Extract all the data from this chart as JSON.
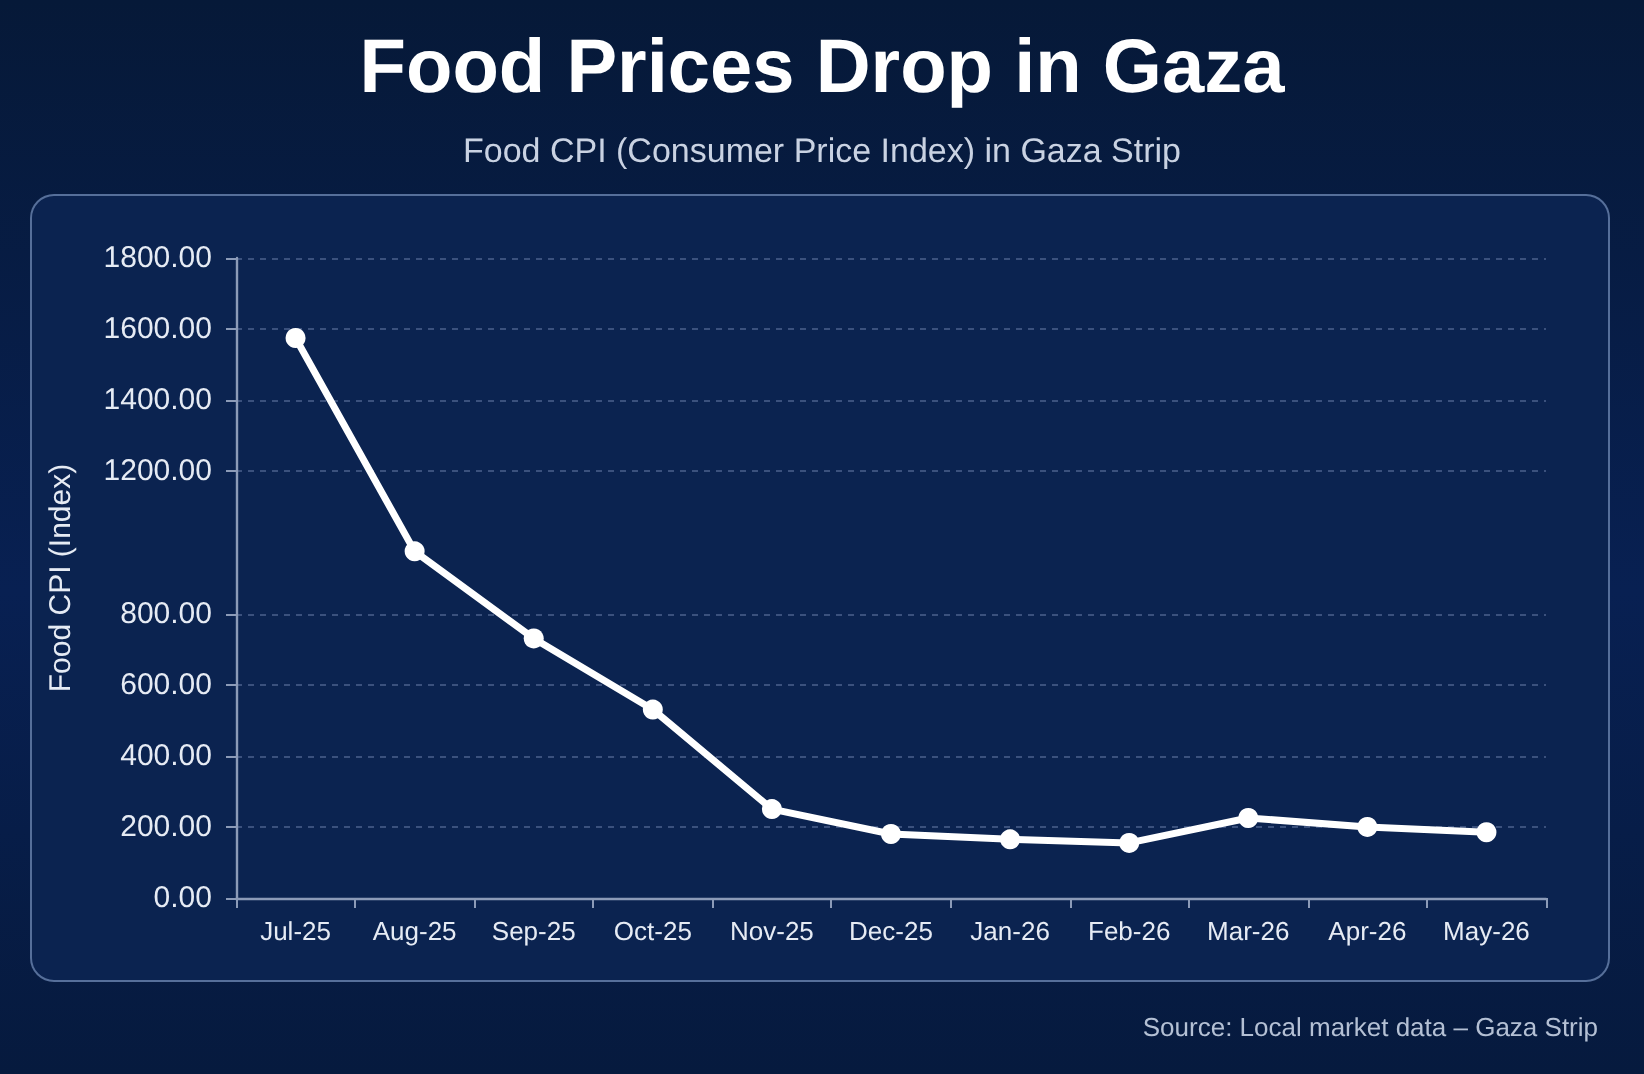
{
  "chart_data": {
    "type": "line",
    "title": "Food Prices Drop in Gaza",
    "subtitle": "Food CPI (Consumer Price Index) in Gaza Strip",
    "ylabel": "Food CPI (Index)",
    "annotations": [
      "Source: Local market data – Gaza Strip"
    ],
    "categories": [
      "Jul-25",
      "Aug-25",
      "Sep-25",
      "Oct-25",
      "Nov-25",
      "Dec-25",
      "Jan-26",
      "Feb-26",
      "Mar-26",
      "Apr-26",
      "May-26"
    ],
    "values": [
      1575,
      975,
      730,
      530,
      250,
      180,
      165,
      155,
      225,
      200,
      185
    ],
    "color": "#ffffff",
    "ylim": [
      0,
      1800
    ],
    "yticks": [
      {
        "value": 0,
        "label": "0.00"
      },
      {
        "value": 200,
        "label": "200.00"
      },
      {
        "value": 400,
        "label": "400.00"
      },
      {
        "value": 600,
        "label": "600.00"
      },
      {
        "value": 800,
        "label": "800.00"
      },
      {
        "value": 1200,
        "label": "1200.00"
      },
      {
        "value": 1400,
        "label": "1400.00"
      },
      {
        "value": 1600,
        "label": "1600.00"
      },
      {
        "value": 1800,
        "label": "1800.00"
      }
    ],
    "grid": "y",
    "marker": "circle",
    "line_style": "solid"
  }
}
